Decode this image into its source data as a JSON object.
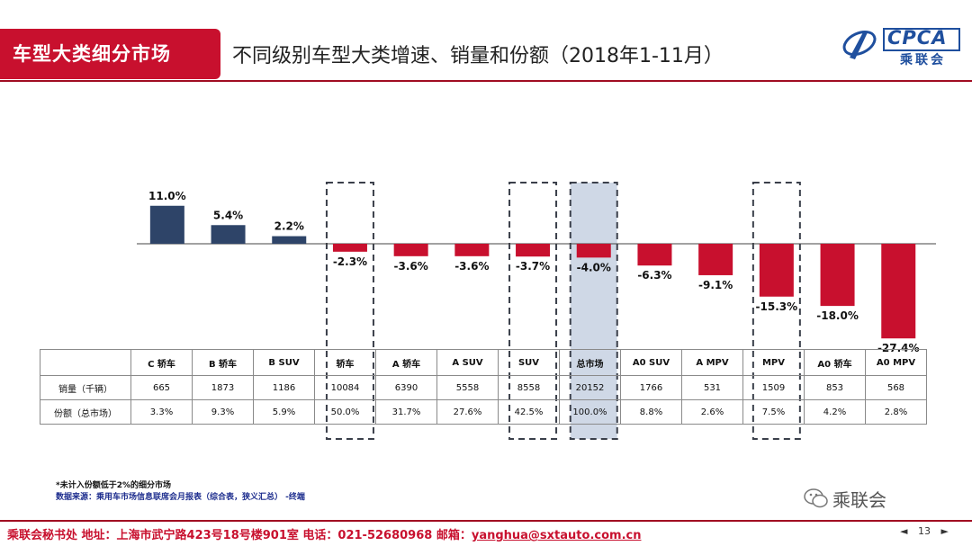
{
  "header": {
    "section_title": "车型大类细分市场",
    "slide_title": "不同级别车型大类增速、销量和份额（2018年1-11月）",
    "logo_text": "CPCA",
    "logo_subtext": "乘联会"
  },
  "chart_data": {
    "type": "bar",
    "title": "",
    "xlabel": "",
    "ylabel": "",
    "categories": [
      "C 轿车",
      "B 轿车",
      "B SUV",
      "轿车",
      "A 轿车",
      "A SUV",
      "SUV",
      "总市场",
      "A0 SUV",
      "A MPV",
      "MPV",
      "A0 轿车",
      "A0 MPV"
    ],
    "values": [
      11.0,
      5.4,
      2.2,
      -2.3,
      -3.6,
      -3.6,
      -3.7,
      -4.0,
      -6.3,
      -9.1,
      -15.3,
      -18.0,
      -27.4
    ],
    "value_labels": [
      "11.0%",
      "5.4%",
      "2.2%",
      "-2.3%",
      "-3.6%",
      "-3.6%",
      "-3.7%",
      "-4.0%",
      "-6.3%",
      "-9.1%",
      "-15.3%",
      "-18.0%",
      "-27.4%"
    ],
    "ylim": [
      -28.6,
      21
    ],
    "grid": false,
    "highlighted": [
      "轿车",
      "SUV",
      "总市场",
      "MPV"
    ],
    "shaded": [
      "总市场"
    ]
  },
  "table": {
    "rows": [
      {
        "label": "销量（千辆）",
        "values": [
          "665",
          "1873",
          "1186",
          "10084",
          "6390",
          "5558",
          "8558",
          "20152",
          "1766",
          "531",
          "1509",
          "853",
          "568"
        ]
      },
      {
        "label": "份额（总市场）",
        "values": [
          "3.3%",
          "9.3%",
          "5.9%",
          "50.0%",
          "31.7%",
          "27.6%",
          "42.5%",
          "100.0%",
          "8.8%",
          "2.6%",
          "7.5%",
          "4.2%",
          "2.8%"
        ]
      }
    ]
  },
  "notes": {
    "footnote": "*未计入份额低于2%的细分市场",
    "source": "数据来源：乘用车市场信息联席会月报表（综合表，狭义汇总）  -终端"
  },
  "watermark": "乘联会",
  "footer": {
    "contact": "乘联会秘书处   地址：上海市武宁路423号18号楼901室  电话：021-52680968   邮箱：",
    "email": "yanghua@sxtauto.com.cn"
  },
  "pager": {
    "prev": "◄",
    "page": "13",
    "next": "►"
  },
  "colors": {
    "brand": "#c8102e",
    "positive_bar": "#2e4468",
    "negative_bar": "#c8102e",
    "highlight_fill": "#cfd8e6"
  }
}
